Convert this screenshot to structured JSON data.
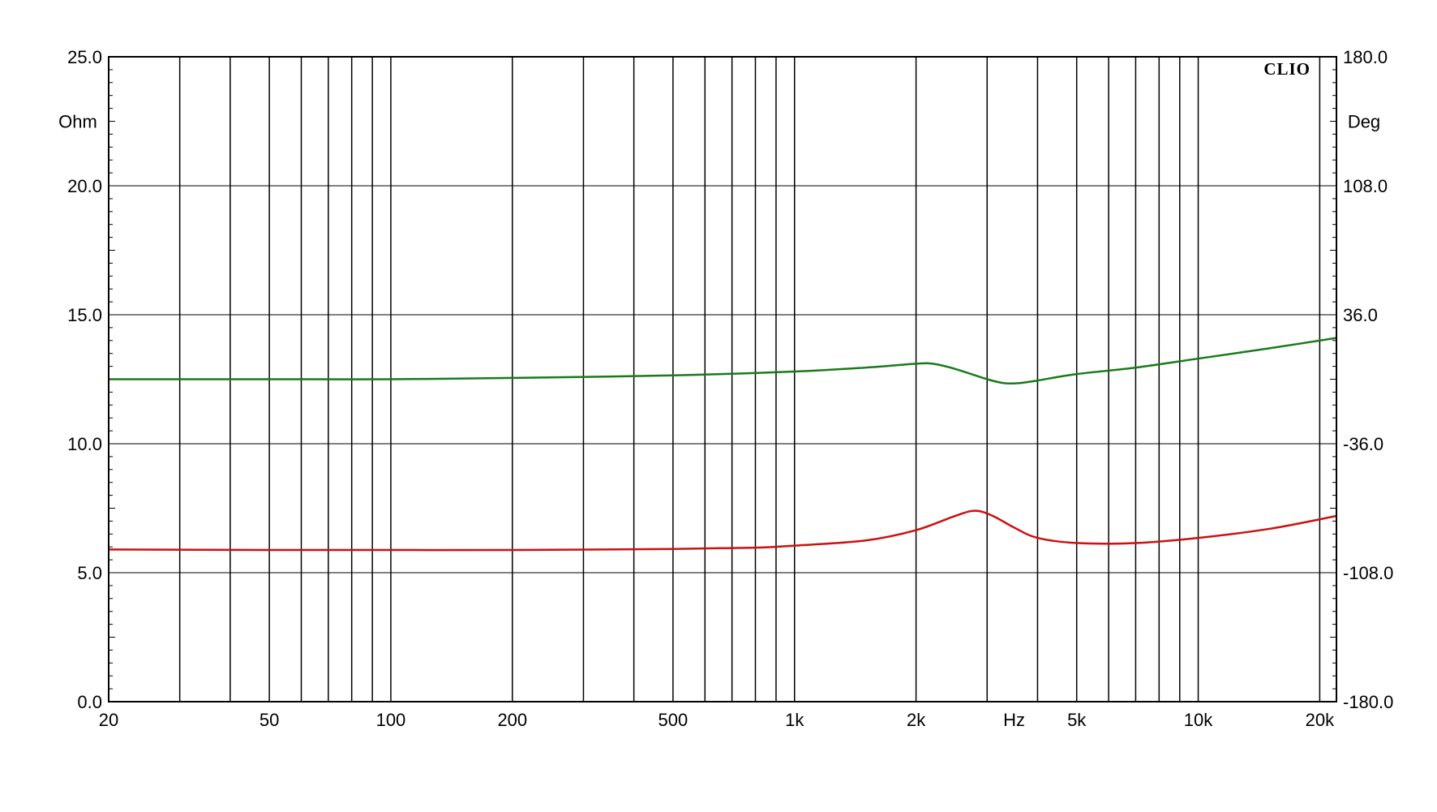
{
  "chart_data": {
    "type": "line",
    "brand": "CLIO",
    "x_scale": "log",
    "xlim": [
      20,
      22000
    ],
    "xlabel": "Hz",
    "x_ticks": [
      {
        "value": 20,
        "label": "20"
      },
      {
        "value": 50,
        "label": "50"
      },
      {
        "value": 100,
        "label": "100"
      },
      {
        "value": 200,
        "label": "200"
      },
      {
        "value": 500,
        "label": "500"
      },
      {
        "value": 1000,
        "label": "1k"
      },
      {
        "value": 2000,
        "label": "2k"
      },
      {
        "value": 5000,
        "label": "5k"
      },
      {
        "value": 10000,
        "label": "10k"
      },
      {
        "value": 20000,
        "label": "20k"
      }
    ],
    "x_gridlines": [
      20,
      30,
      40,
      50,
      60,
      70,
      80,
      90,
      100,
      200,
      300,
      400,
      500,
      600,
      700,
      800,
      900,
      1000,
      2000,
      3000,
      4000,
      5000,
      6000,
      7000,
      8000,
      9000,
      10000,
      20000
    ],
    "y_left": {
      "label": "Ohm",
      "ylim": [
        0,
        25
      ],
      "ticks": [
        {
          "value": 0,
          "label": "0.0"
        },
        {
          "value": 5,
          "label": "5.0"
        },
        {
          "value": 10,
          "label": "10.0"
        },
        {
          "value": 15,
          "label": "15.0"
        },
        {
          "value": 20,
          "label": "20.0"
        },
        {
          "value": 25,
          "label": "25.0"
        }
      ]
    },
    "y_right": {
      "label": "Deg",
      "ylim": [
        -180,
        180
      ],
      "ticks": [
        {
          "value": -180,
          "label": "-180.0"
        },
        {
          "value": -108,
          "label": "-108.0"
        },
        {
          "value": -36,
          "label": "-36.0"
        },
        {
          "value": 36,
          "label": "36.0"
        },
        {
          "value": 108,
          "label": "108.0"
        },
        {
          "value": 180,
          "label": "180.0"
        }
      ]
    },
    "grid": true,
    "series": [
      {
        "color": "#1a7a1a",
        "axis": "left",
        "points": [
          [
            20,
            12.5
          ],
          [
            50,
            12.5
          ],
          [
            100,
            12.5
          ],
          [
            200,
            12.55
          ],
          [
            500,
            12.65
          ],
          [
            1000,
            12.8
          ],
          [
            1500,
            12.95
          ],
          [
            2000,
            13.1
          ],
          [
            2200,
            13.1
          ],
          [
            2500,
            12.9
          ],
          [
            3000,
            12.5
          ],
          [
            3300,
            12.35
          ],
          [
            3600,
            12.35
          ],
          [
            4000,
            12.45
          ],
          [
            5000,
            12.7
          ],
          [
            7000,
            12.95
          ],
          [
            10000,
            13.3
          ],
          [
            15000,
            13.7
          ],
          [
            22000,
            14.1
          ]
        ]
      },
      {
        "color": "#cc1111",
        "axis": "left",
        "points": [
          [
            20,
            5.9
          ],
          [
            50,
            5.88
          ],
          [
            100,
            5.88
          ],
          [
            200,
            5.88
          ],
          [
            500,
            5.92
          ],
          [
            800,
            5.97
          ],
          [
            1000,
            6.05
          ],
          [
            1500,
            6.25
          ],
          [
            2000,
            6.65
          ],
          [
            2500,
            7.2
          ],
          [
            2800,
            7.4
          ],
          [
            3100,
            7.2
          ],
          [
            3500,
            6.75
          ],
          [
            4000,
            6.35
          ],
          [
            5000,
            6.15
          ],
          [
            7000,
            6.15
          ],
          [
            10000,
            6.35
          ],
          [
            15000,
            6.7
          ],
          [
            22000,
            7.2
          ]
        ]
      }
    ]
  }
}
